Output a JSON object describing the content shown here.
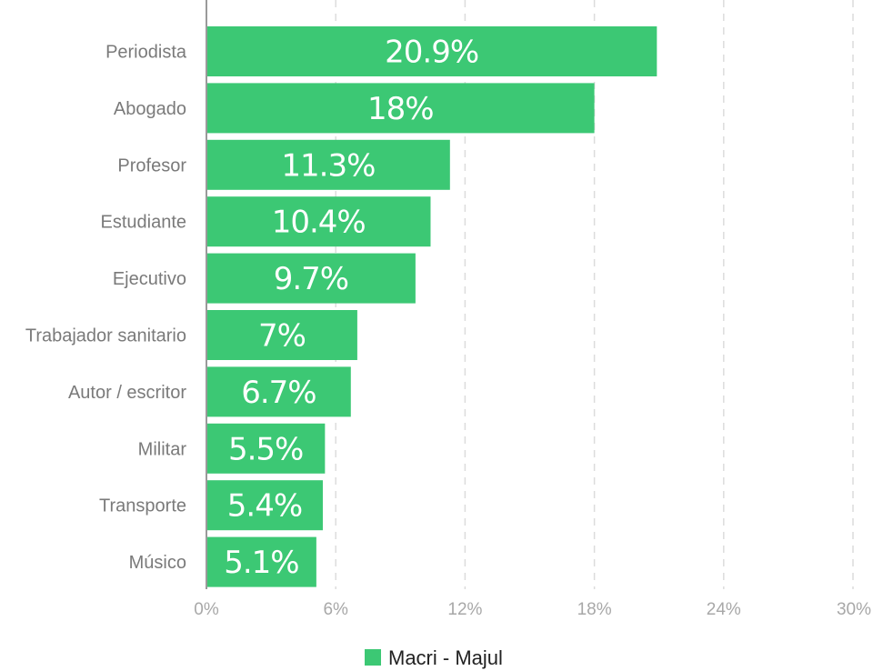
{
  "chart_data": {
    "type": "bar",
    "orientation": "horizontal",
    "categories": [
      "Periodista",
      "Abogado",
      "Profesor",
      "Estudiante",
      "Ejecutivo",
      "Trabajador sanitario",
      "Autor / escritor",
      "Militar",
      "Transporte",
      "Músico"
    ],
    "series": [
      {
        "name": "Macri - Majul",
        "color": "#3cc874",
        "values": [
          20.9,
          18,
          11.3,
          10.4,
          9.7,
          7,
          6.7,
          5.5,
          5.4,
          5.1
        ],
        "labels": [
          "20.9%",
          "18%",
          "11.3%",
          "10.4%",
          "9.7%",
          "7%",
          "6.7%",
          "5.5%",
          "5.4%",
          "5.1%"
        ]
      }
    ],
    "xlim": [
      0,
      30
    ],
    "x_ticks": [
      0,
      6,
      12,
      18,
      24,
      30
    ],
    "x_tick_labels": [
      "0%",
      "6%",
      "12%",
      "18%",
      "24%",
      "30%"
    ],
    "grid": true,
    "legend_position": "bottom-center"
  }
}
